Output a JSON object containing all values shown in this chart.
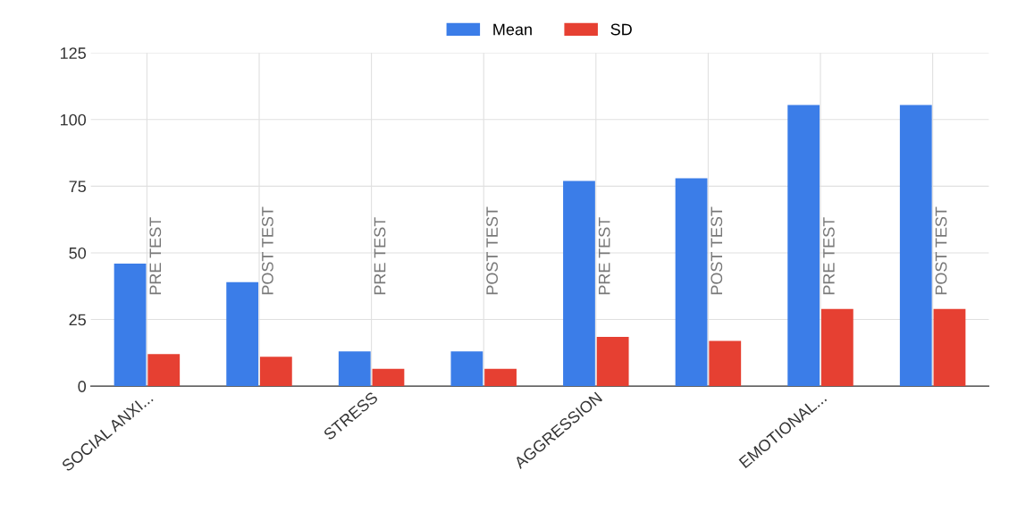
{
  "chart_data": {
    "type": "bar",
    "categories": [
      "SOCIAL ANXI...",
      null,
      "STRESS",
      null,
      "AGGRESSION",
      null,
      "EMOTIONAL...",
      null
    ],
    "series": [
      {
        "name": "Mean",
        "color": "#3b7de8",
        "values": [
          46,
          39,
          13,
          13,
          77,
          78,
          105.5,
          105.5
        ]
      },
      {
        "name": "SD",
        "color": "#e64032",
        "values": [
          12,
          11,
          6.5,
          6.5,
          18.5,
          17,
          29,
          29
        ]
      }
    ],
    "annotations": [
      "PRE TEST",
      "POST TEST",
      "PRE TEST",
      "POST TEST",
      "PRE TEST",
      "POST TEST",
      "PRE TEST",
      "POST TEST"
    ],
    "ylim": [
      0,
      125
    ],
    "yticks": [
      0,
      25,
      50,
      75,
      100,
      125
    ],
    "grid": true,
    "legend": "top"
  }
}
